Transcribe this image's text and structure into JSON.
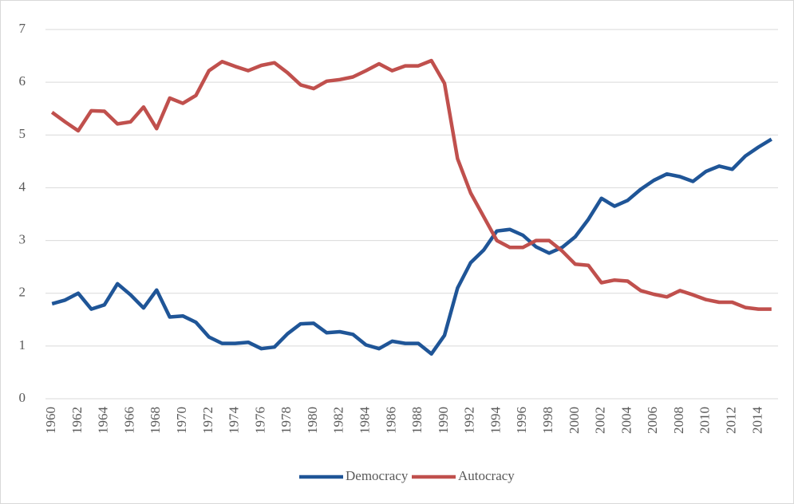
{
  "chart_data": {
    "type": "line",
    "categories": [
      "1960",
      null,
      "1962",
      null,
      "1964",
      null,
      "1966",
      null,
      "1968",
      null,
      "1970",
      null,
      "1972",
      null,
      "1974",
      null,
      "1976",
      null,
      "1978",
      null,
      "1980",
      null,
      "1982",
      null,
      "1984",
      null,
      "1986",
      null,
      "1988",
      null,
      "1990",
      null,
      "1992",
      null,
      "1994",
      null,
      "1996",
      null,
      "1998",
      null,
      "2000",
      null,
      "2002",
      null,
      "2004",
      null,
      "2006",
      null,
      "2008",
      null,
      "2010",
      null,
      "2012",
      null,
      "2014",
      null
    ],
    "series": [
      {
        "name": "Democracy",
        "color": "#1f5597",
        "values": [
          1.8,
          1.87,
          2.0,
          1.7,
          1.78,
          2.18,
          1.97,
          1.72,
          2.06,
          1.55,
          1.57,
          1.45,
          1.17,
          1.05,
          1.05,
          1.07,
          0.95,
          0.98,
          1.23,
          1.42,
          1.43,
          1.25,
          1.27,
          1.22,
          1.02,
          0.95,
          1.09,
          1.05,
          1.05,
          0.85,
          1.2,
          2.1,
          2.58,
          2.82,
          3.18,
          3.21,
          3.1,
          2.88,
          2.76,
          2.87,
          3.07,
          3.4,
          3.8,
          3.65,
          3.76,
          3.97,
          4.14,
          4.26,
          4.21,
          4.12,
          4.31,
          4.41,
          4.35,
          4.6,
          4.77,
          4.92
        ]
      },
      {
        "name": "Autocracy",
        "color": "#c0504d",
        "values": [
          5.43,
          5.25,
          5.08,
          5.46,
          5.45,
          5.21,
          5.25,
          5.53,
          5.12,
          5.7,
          5.6,
          5.75,
          6.22,
          6.39,
          6.3,
          6.22,
          6.32,
          6.37,
          6.18,
          5.95,
          5.88,
          6.02,
          6.05,
          6.1,
          6.22,
          6.35,
          6.22,
          6.31,
          6.31,
          6.41,
          5.98,
          4.55,
          3.9,
          3.45,
          3.0,
          2.87,
          2.87,
          3.0,
          3.0,
          2.8,
          2.55,
          2.53,
          2.2,
          2.25,
          2.23,
          2.05,
          1.98,
          1.93,
          2.05,
          1.97,
          1.88,
          1.83,
          1.83,
          1.73,
          1.7,
          1.7
        ]
      }
    ],
    "ylim": [
      0,
      7
    ],
    "yticks": [
      0,
      1,
      2,
      3,
      4,
      5,
      6,
      7
    ],
    "grid": true,
    "legend": "bottom"
  }
}
